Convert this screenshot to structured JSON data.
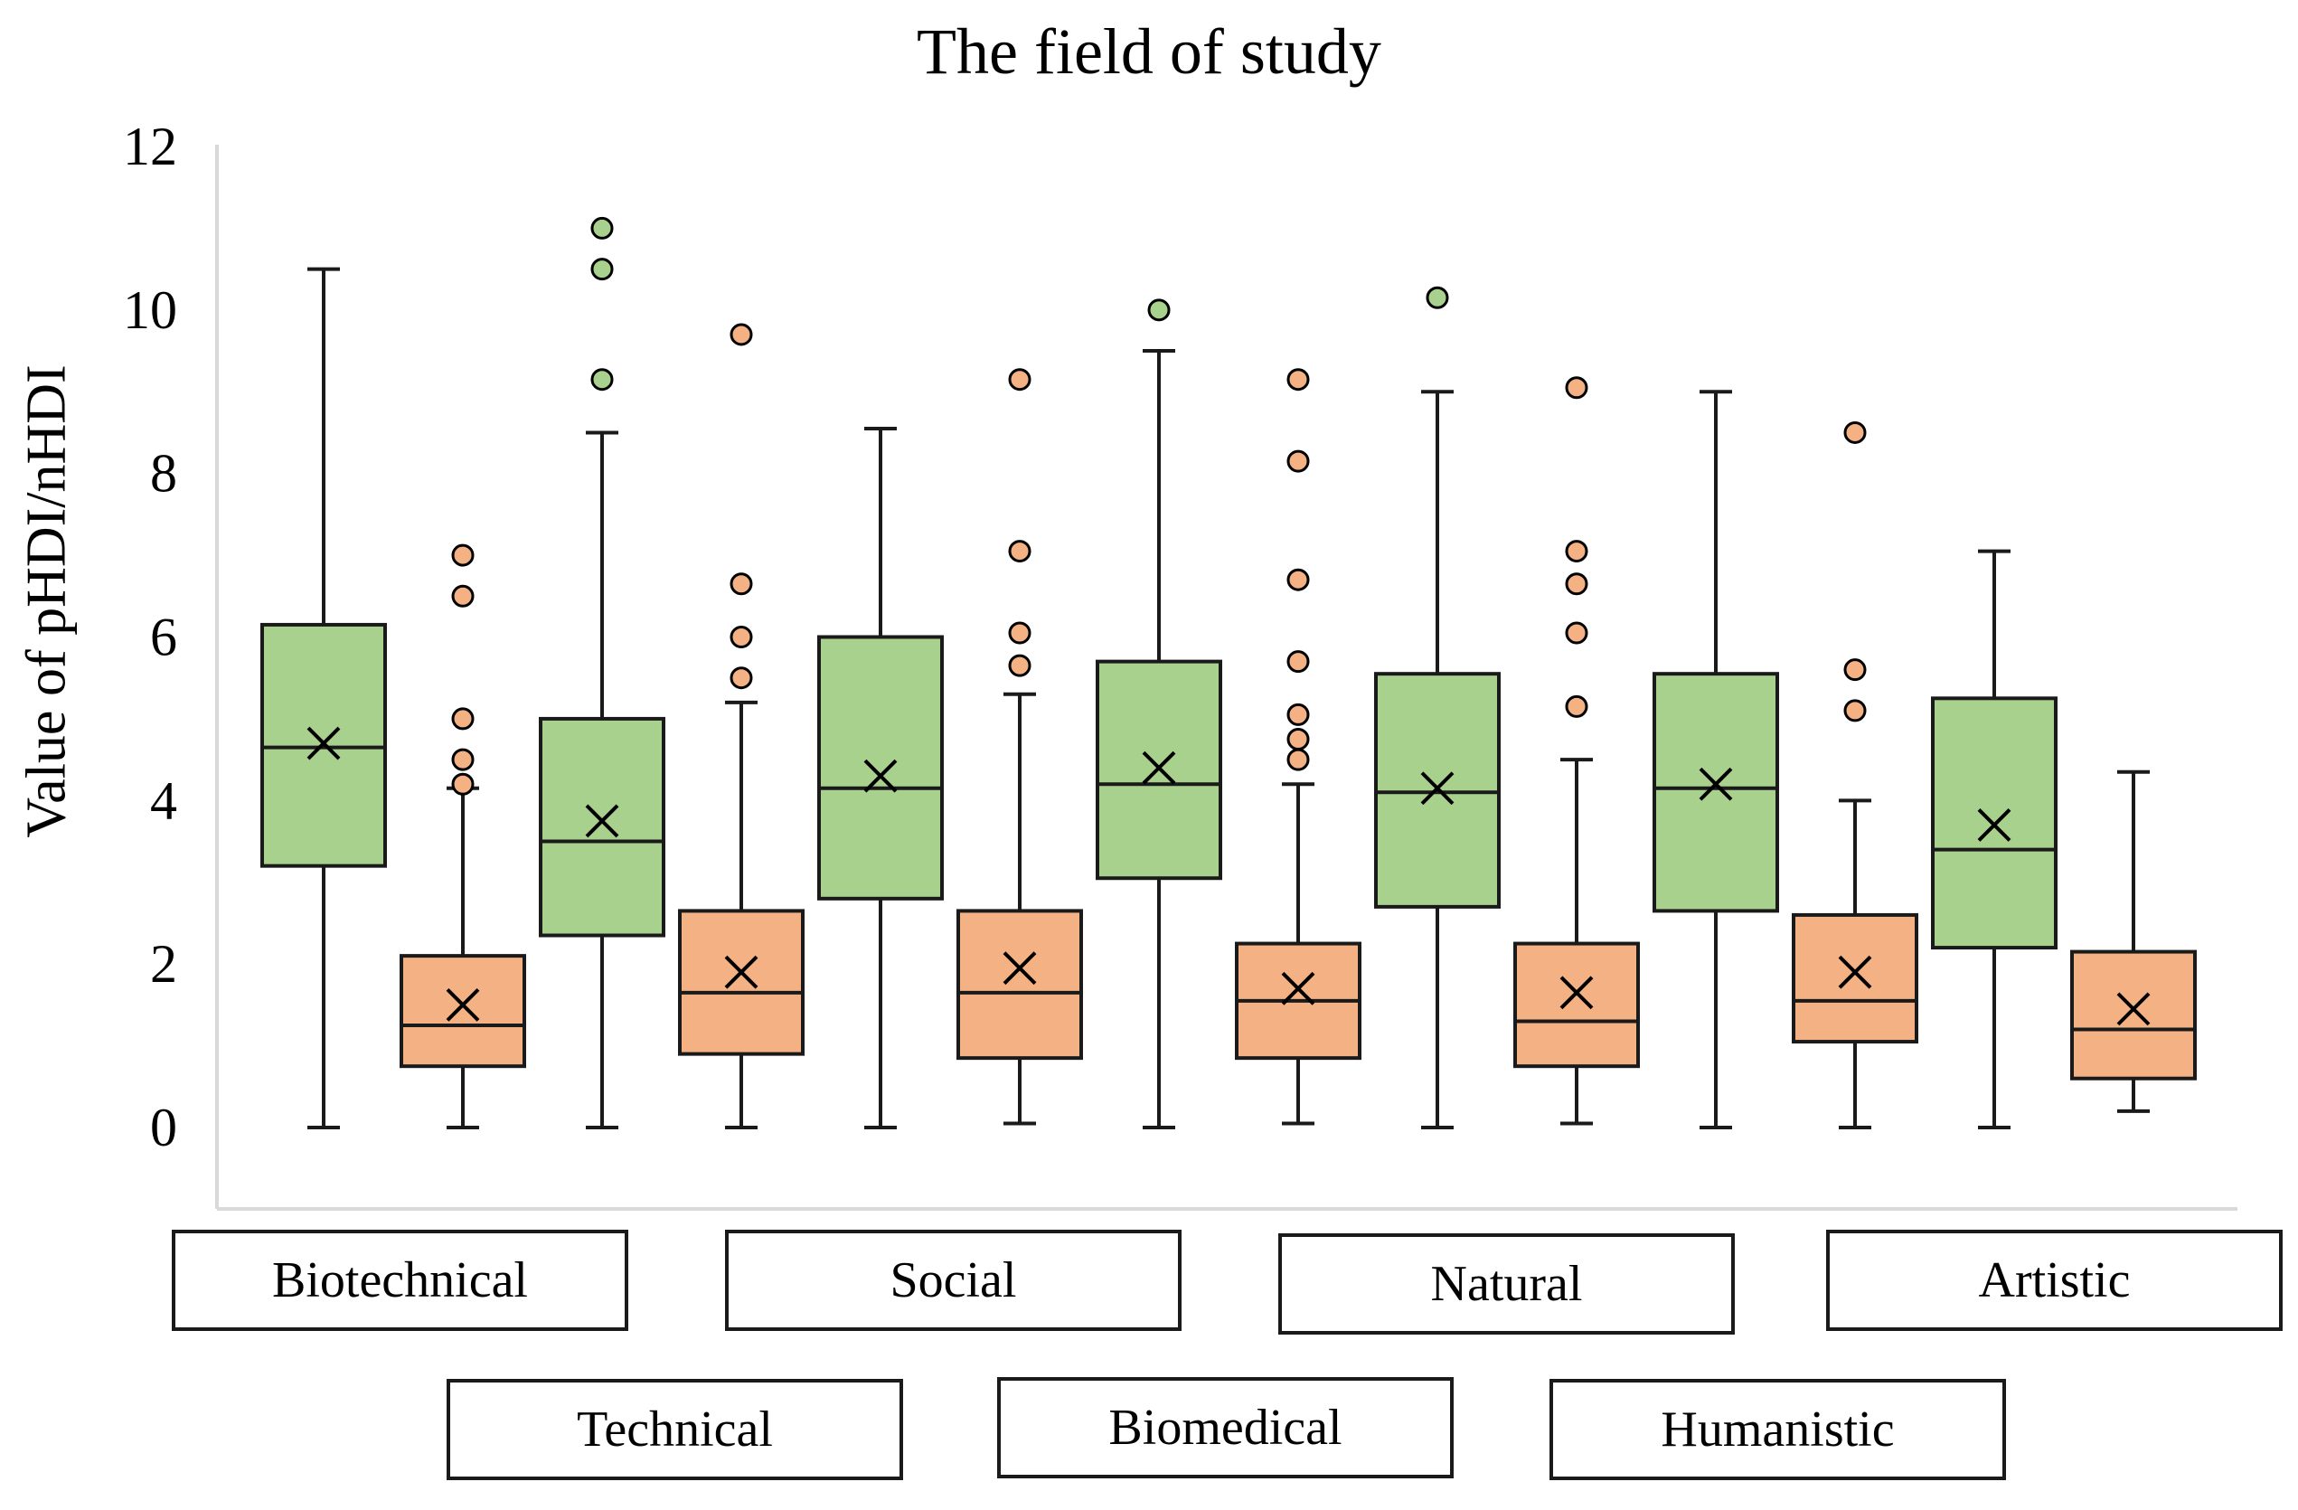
{
  "chart_data": {
    "type": "box",
    "title": "The field of study",
    "ylabel": "Value of pHDI/nHDI",
    "ylim": [
      0,
      12
    ],
    "yticks": [
      "0",
      "2",
      "4",
      "6",
      "8",
      "10",
      "12"
    ],
    "grid": false,
    "colors": {
      "green": "#a9d18e",
      "orange": "#f4b183",
      "outline": "#1a1a1a",
      "green_outlier": "#a9d18e",
      "orange_outlier": "#f4b183"
    },
    "categories": [
      "Biotechnical",
      "Technical",
      "Social",
      "Biomedical",
      "Natural",
      "Humanistic",
      "Artistic"
    ],
    "boxes": [
      {
        "category": "Biotechnical",
        "color": "green",
        "min": 0,
        "q1": 3.2,
        "median": 4.65,
        "q3": 6.15,
        "max": 10.5,
        "mean": 4.7,
        "outliers": []
      },
      {
        "category": "Biotechnical",
        "color": "orange",
        "min": 0,
        "q1": 0.75,
        "median": 1.25,
        "q3": 2.1,
        "max": 4.15,
        "mean": 1.5,
        "outliers": [
          4.2,
          4.5,
          5.0,
          6.5,
          7.0
        ]
      },
      {
        "category": "Technical",
        "color": "green",
        "min": 0,
        "q1": 2.35,
        "median": 3.5,
        "q3": 5.0,
        "max": 8.5,
        "mean": 3.75,
        "outliers": [
          9.15,
          10.5,
          11.0
        ]
      },
      {
        "category": "Technical",
        "color": "orange",
        "min": 0,
        "q1": 0.9,
        "median": 1.65,
        "q3": 2.65,
        "max": 5.2,
        "mean": 1.9,
        "outliers": [
          5.5,
          6.0,
          6.65,
          9.7
        ]
      },
      {
        "category": "Social",
        "color": "green",
        "min": 0,
        "q1": 2.8,
        "median": 4.15,
        "q3": 6.0,
        "max": 8.55,
        "mean": 4.3,
        "outliers": []
      },
      {
        "category": "Social",
        "color": "orange",
        "min": 0.05,
        "q1": 0.85,
        "median": 1.65,
        "q3": 2.65,
        "max": 5.3,
        "mean": 1.95,
        "outliers": [
          5.65,
          6.05,
          7.05,
          9.15
        ]
      },
      {
        "category": "Biomedical",
        "color": "green",
        "min": 0,
        "q1": 3.05,
        "median": 4.2,
        "q3": 5.7,
        "max": 9.5,
        "mean": 4.4,
        "outliers": [
          10.0
        ]
      },
      {
        "category": "Biomedical",
        "color": "orange",
        "min": 0.05,
        "q1": 0.85,
        "median": 1.55,
        "q3": 2.25,
        "max": 4.2,
        "mean": 1.7,
        "outliers": [
          4.5,
          4.75,
          5.05,
          5.7,
          6.7,
          8.15,
          9.15
        ]
      },
      {
        "category": "Natural",
        "color": "green",
        "min": 0,
        "q1": 2.7,
        "median": 4.1,
        "q3": 5.55,
        "max": 9.0,
        "mean": 4.15,
        "outliers": [
          10.15
        ]
      },
      {
        "category": "Natural",
        "color": "orange",
        "min": 0.05,
        "q1": 0.75,
        "median": 1.3,
        "q3": 2.25,
        "max": 4.5,
        "mean": 1.65,
        "outliers": [
          5.15,
          6.05,
          6.65,
          7.05,
          9.05
        ]
      },
      {
        "category": "Humanistic",
        "color": "green",
        "min": 0,
        "q1": 2.65,
        "median": 4.15,
        "q3": 5.55,
        "max": 9.0,
        "mean": 4.2,
        "outliers": []
      },
      {
        "category": "Humanistic",
        "color": "orange",
        "min": 0,
        "q1": 1.05,
        "median": 1.55,
        "q3": 2.6,
        "max": 4.0,
        "mean": 1.9,
        "outliers": [
          5.1,
          5.6,
          8.5
        ]
      },
      {
        "category": "Artistic",
        "color": "green",
        "min": 0,
        "q1": 2.2,
        "median": 3.4,
        "q3": 5.25,
        "max": 7.05,
        "mean": 3.7,
        "outliers": []
      },
      {
        "category": "Artistic",
        "color": "orange",
        "min": 0.2,
        "q1": 0.6,
        "median": 1.2,
        "q3": 2.15,
        "max": 4.35,
        "mean": 1.45,
        "outliers": []
      }
    ],
    "category_labels": {
      "top_row": [
        "Biotechnical",
        "Social",
        "Natural",
        "Artistic"
      ],
      "bottom_row": [
        "Technical",
        "Biomedical",
        "Humanistic"
      ]
    }
  }
}
